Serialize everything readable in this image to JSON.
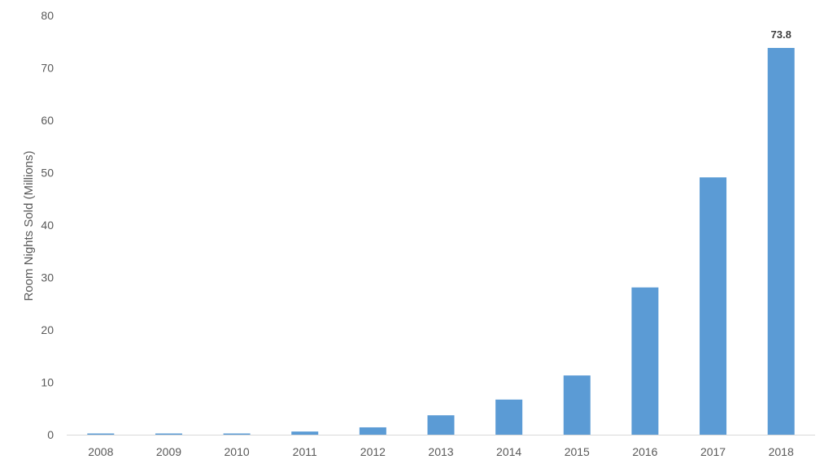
{
  "chart_data": {
    "type": "bar",
    "title": "",
    "xlabel": "",
    "ylabel": "Room Nights Sold (Millions)",
    "categories": [
      "2008",
      "2009",
      "2010",
      "2011",
      "2012",
      "2013",
      "2014",
      "2015",
      "2016",
      "2017",
      "2018"
    ],
    "values": [
      0.1,
      0.1,
      0.1,
      0.6,
      1.4,
      3.7,
      6.7,
      11.3,
      28.1,
      49.1,
      73.8
    ],
    "ylim": [
      0,
      80
    ],
    "yticks": [
      "0",
      "10",
      "20",
      "30",
      "40",
      "50",
      "60",
      "70",
      "80"
    ],
    "data_labels": [
      {
        "category": "2018",
        "text": "73.8"
      }
    ],
    "bar_color": "#5b9bd5",
    "axis_color": "#d9d9d9",
    "grid": false,
    "legend": "none"
  }
}
